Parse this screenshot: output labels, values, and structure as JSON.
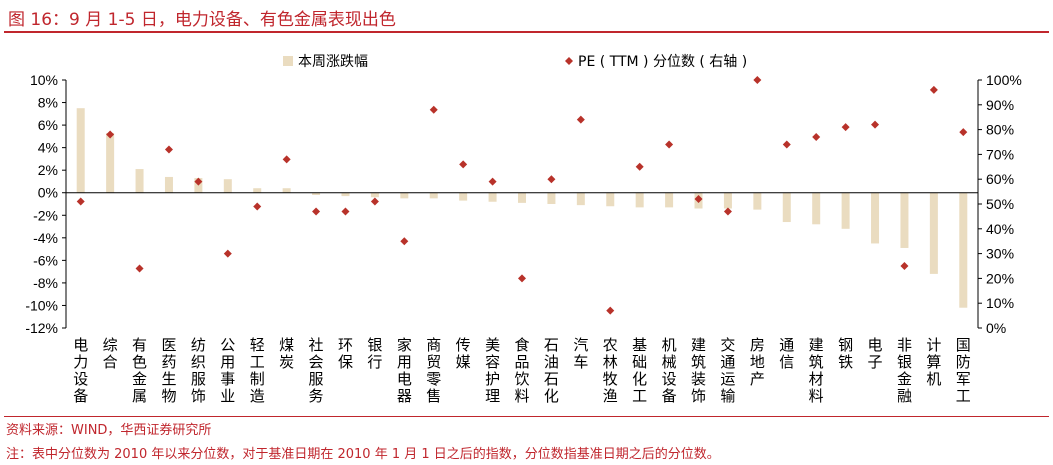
{
  "header": {
    "title": "图 16：9 月 1-5 日，电力设备、有色金属表现出色"
  },
  "footer": {
    "source": "资料来源：WIND，华西证券研究所",
    "note": "注：表中分位数为 2010 年以来分位数，对于基准日期在 2010 年 1 月 1 日之后的指数，分位数指基准日期之后的分位数。"
  },
  "colors": {
    "accent": "#c0262d",
    "bar": "#eadcc0",
    "marker": "#b8322a"
  },
  "chart_data": {
    "type": "bar",
    "categories": [
      "电力设备",
      "综合",
      "有色金属",
      "医药生物",
      "纺织服饰",
      "公用事业",
      "轻工制造",
      "煤炭",
      "社会服务",
      "环保",
      "银行",
      "家用电器",
      "商贸零售",
      "传媒",
      "美容护理",
      "食品饮料",
      "石油石化",
      "汽车",
      "农林牧渔",
      "基础化工",
      "机械设备",
      "建筑装饰",
      "交通运输",
      "房地产",
      "通信",
      "建筑材料",
      "钢铁",
      "电子",
      "非银金融",
      "计算机",
      "国防军工"
    ],
    "series": [
      {
        "name": "本周涨跌幅",
        "type": "bar",
        "axis": "left",
        "values": [
          7.5,
          5.3,
          2.1,
          1.4,
          1.3,
          1.2,
          0.4,
          0.4,
          -0.2,
          -0.3,
          -0.4,
          -0.5,
          -0.5,
          -0.7,
          -0.8,
          -0.9,
          -1.0,
          -1.1,
          -1.2,
          -1.3,
          -1.3,
          -1.4,
          -1.4,
          -1.5,
          -2.6,
          -2.8,
          -3.2,
          -4.5,
          -4.9,
          -7.2,
          -10.2
        ]
      },
      {
        "name": "PE（TTM）分位数（右轴）",
        "type": "scatter",
        "axis": "right",
        "values": [
          51,
          78,
          24,
          72,
          59,
          30,
          49,
          68,
          47,
          47,
          51,
          35,
          88,
          66,
          59,
          20,
          60,
          84,
          7,
          65,
          74,
          52,
          47,
          100,
          74,
          77,
          81,
          82,
          25,
          96,
          79
        ]
      }
    ],
    "y_left": {
      "ylim": [
        -12,
        10
      ],
      "ticks": [
        10,
        8,
        6,
        4,
        2,
        0,
        -2,
        -4,
        -6,
        -8,
        -10,
        -12
      ],
      "tick_labels": [
        "10%",
        "8%",
        "6%",
        "4%",
        "2%",
        "0%",
        "-2%",
        "-4%",
        "-6%",
        "-8%",
        "-10%",
        "-12%"
      ]
    },
    "y_right": {
      "ylim": [
        0,
        100
      ],
      "ticks": [
        100,
        90,
        80,
        70,
        60,
        50,
        40,
        30,
        20,
        10,
        0
      ],
      "tick_labels": [
        "100%",
        "90%",
        "80%",
        "70%",
        "60%",
        "50%",
        "40%",
        "30%",
        "20%",
        "10%",
        "0%"
      ]
    },
    "legend": {
      "position": "top",
      "bar_label": "本周涨跌幅",
      "marker_label": "PE ( TTM ) 分位数 ( 右轴 )"
    },
    "grid": false
  }
}
